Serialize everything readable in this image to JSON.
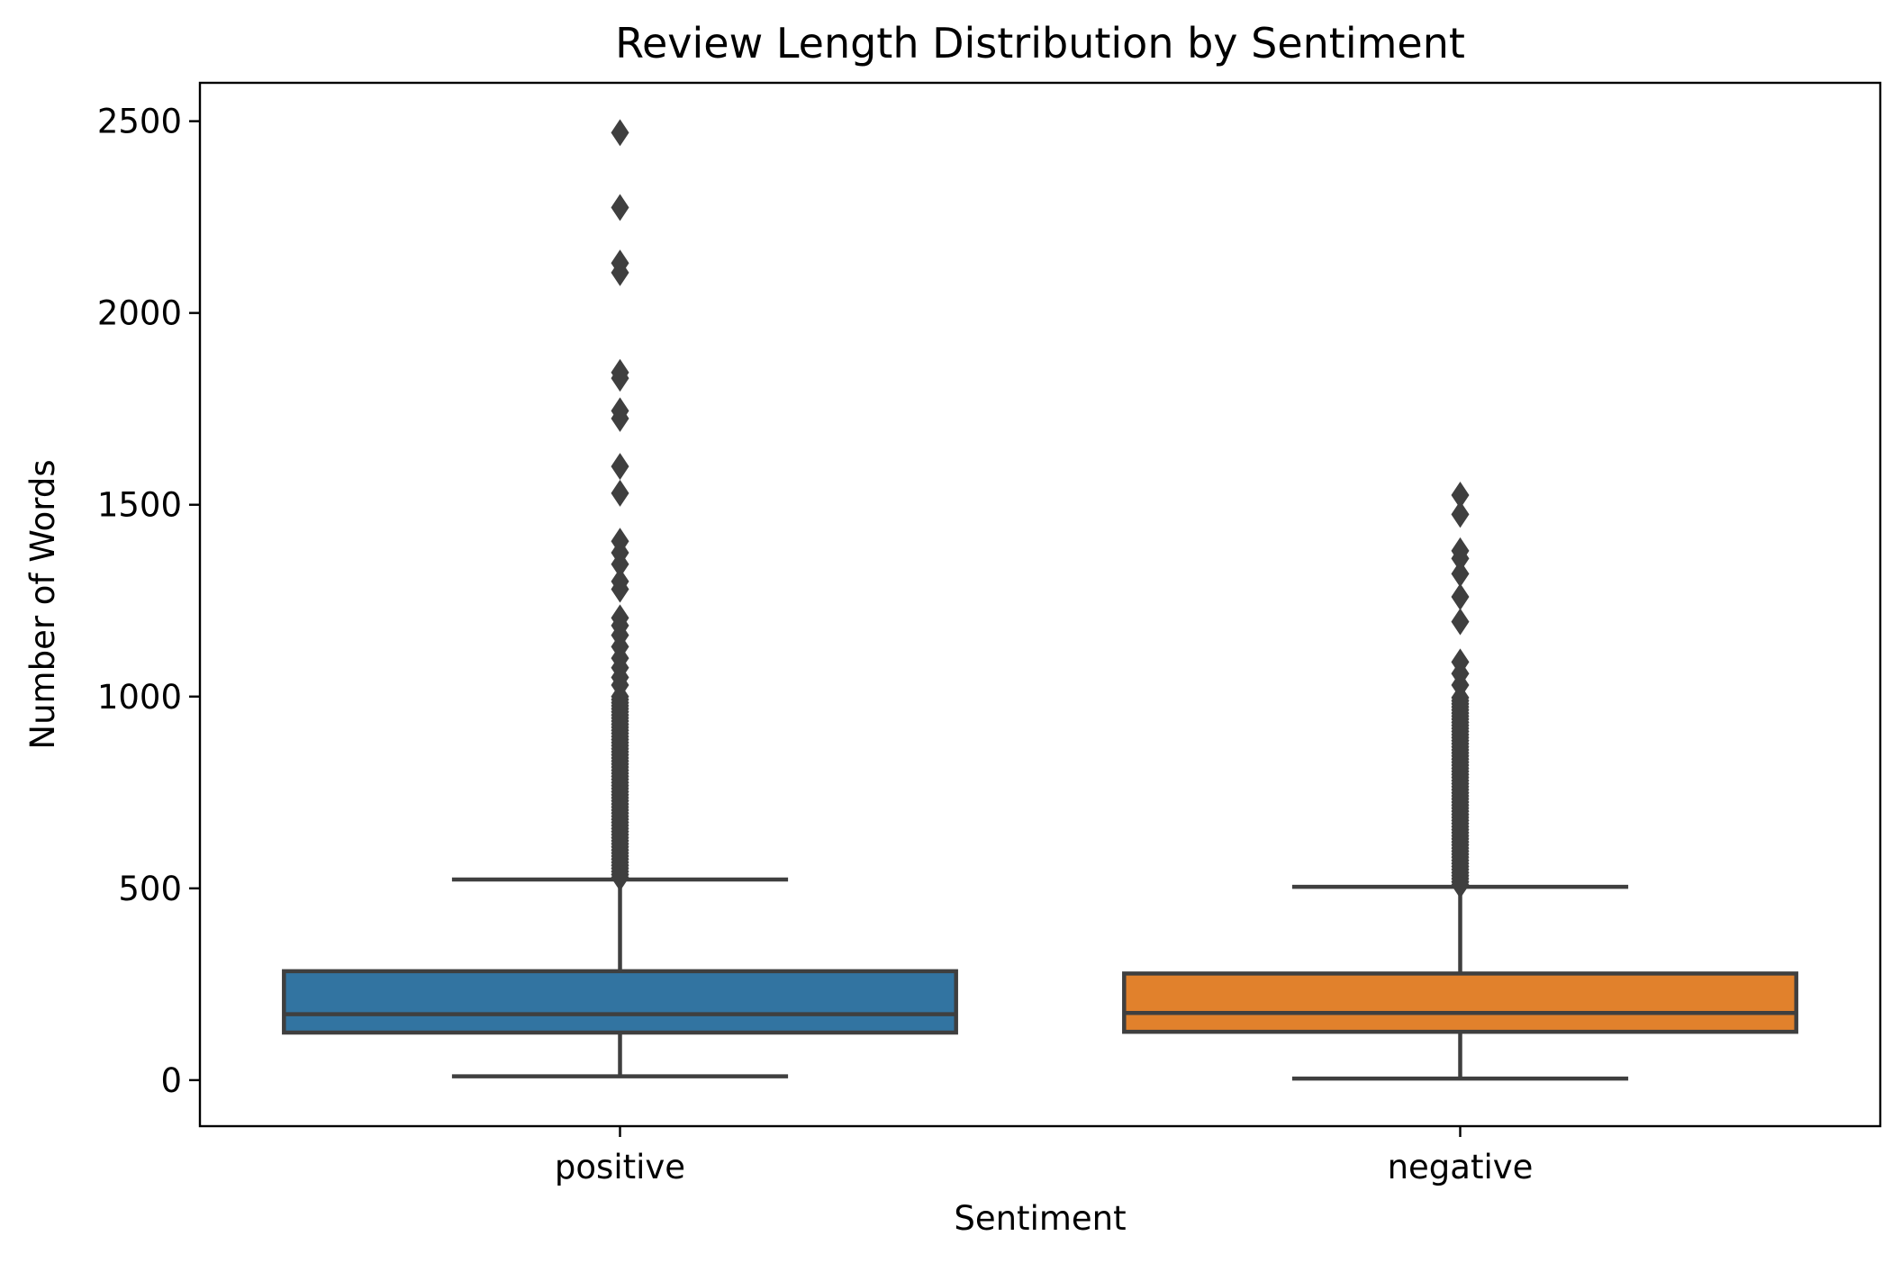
{
  "chart_data": {
    "type": "boxplot",
    "title": "Review Length Distribution by Sentiment",
    "xlabel": "Sentiment",
    "ylabel": "Number of Words",
    "ylim": [
      -120,
      2600
    ],
    "yticks": [
      0,
      500,
      1000,
      1500,
      2000,
      2500
    ],
    "grid": false,
    "legend": "none",
    "colors": {
      "positive": "#3274a1",
      "negative": "#e1812c",
      "edge": "#3f3f3f",
      "axes": "#000000"
    },
    "categories": [
      "positive",
      "negative"
    ],
    "series": [
      {
        "category": "positive",
        "whisker_low": 10,
        "q1": 124,
        "median": 172,
        "q3": 284,
        "whisker_high": 523,
        "dense_outliers_range": [
          523,
          1000
        ],
        "outliers": [
          1030,
          1050,
          1075,
          1100,
          1130,
          1160,
          1185,
          1205,
          1280,
          1300,
          1345,
          1375,
          1405,
          1530,
          1600,
          1725,
          1745,
          1830,
          1845,
          2105,
          2130,
          2275,
          2470
        ]
      },
      {
        "category": "negative",
        "whisker_low": 4,
        "q1": 126,
        "median": 175,
        "q3": 278,
        "whisker_high": 504,
        "dense_outliers_range": [
          504,
          1000
        ],
        "outliers": [
          1030,
          1060,
          1090,
          1195,
          1260,
          1320,
          1360,
          1380,
          1475,
          1525
        ]
      }
    ]
  }
}
